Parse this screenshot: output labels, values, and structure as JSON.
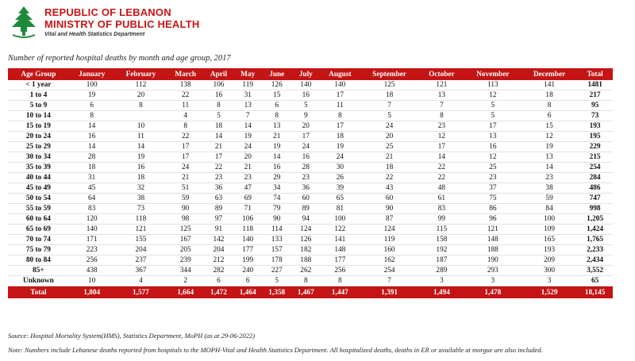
{
  "header": {
    "org_line1": "REPUBLIC OF LEBANON",
    "org_line2": "MINISTRY OF PUBLIC HEALTH",
    "org_line3": "Vital and Health Statistics Department"
  },
  "title": "Number of reported hospital deaths by month and age group, 2017",
  "table": {
    "columns": [
      "Age Group",
      "January",
      "February",
      "March",
      "April",
      "May",
      "June",
      "July",
      "August",
      "September",
      "October",
      "November",
      "December",
      "Total"
    ],
    "rows": [
      [
        "< 1 year",
        "100",
        "112",
        "138",
        "106",
        "119",
        "126",
        "140",
        "140",
        "125",
        "121",
        "113",
        "141",
        "1481"
      ],
      [
        "1 to 4",
        "19",
        "20",
        "22",
        "16",
        "31",
        "15",
        "16",
        "17",
        "18",
        "13",
        "12",
        "18",
        "217"
      ],
      [
        "5 to 9",
        "6",
        "8",
        "11",
        "8",
        "13",
        "6",
        "5",
        "11",
        "7",
        "7",
        "5",
        "8",
        "95"
      ],
      [
        "10 to 14",
        "8",
        "",
        "4",
        "5",
        "7",
        "8",
        "9",
        "8",
        "5",
        "8",
        "5",
        "6",
        "73"
      ],
      [
        "15 to 19",
        "14",
        "10",
        "8",
        "18",
        "14",
        "13",
        "20",
        "17",
        "24",
        "23",
        "17",
        "15",
        "193"
      ],
      [
        "20 to 24",
        "16",
        "11",
        "22",
        "14",
        "19",
        "21",
        "17",
        "18",
        "20",
        "12",
        "13",
        "12",
        "195"
      ],
      [
        "25 to 29",
        "14",
        "14",
        "17",
        "21",
        "24",
        "19",
        "24",
        "19",
        "25",
        "17",
        "16",
        "19",
        "229"
      ],
      [
        "30 to 34",
        "28",
        "19",
        "17",
        "17",
        "20",
        "14",
        "16",
        "24",
        "21",
        "14",
        "12",
        "13",
        "215"
      ],
      [
        "35 to 39",
        "18",
        "16",
        "24",
        "22",
        "21",
        "16",
        "28",
        "30",
        "18",
        "22",
        "25",
        "14",
        "254"
      ],
      [
        "40 to 44",
        "31",
        "18",
        "21",
        "23",
        "23",
        "29",
        "23",
        "26",
        "22",
        "22",
        "23",
        "23",
        "284"
      ],
      [
        "45 to 49",
        "45",
        "32",
        "51",
        "36",
        "47",
        "34",
        "36",
        "39",
        "43",
        "48",
        "37",
        "38",
        "486"
      ],
      [
        "50 to 54",
        "64",
        "38",
        "59",
        "63",
        "69",
        "74",
        "60",
        "65",
        "60",
        "61",
        "75",
        "59",
        "747"
      ],
      [
        "55 to 59",
        "83",
        "73",
        "90",
        "89",
        "71",
        "79",
        "89",
        "81",
        "90",
        "83",
        "86",
        "84",
        "998"
      ],
      [
        "60 to 64",
        "120",
        "118",
        "98",
        "97",
        "106",
        "90",
        "94",
        "100",
        "87",
        "99",
        "96",
        "100",
        "1,205"
      ],
      [
        "65 to 69",
        "140",
        "121",
        "125",
        "91",
        "118",
        "114",
        "124",
        "122",
        "124",
        "115",
        "121",
        "109",
        "1,424"
      ],
      [
        "70 to 74",
        "171",
        "155",
        "167",
        "142",
        "140",
        "133",
        "126",
        "141",
        "119",
        "158",
        "148",
        "165",
        "1,765"
      ],
      [
        "75 to 79",
        "223",
        "204",
        "205",
        "204",
        "177",
        "157",
        "182",
        "148",
        "160",
        "192",
        "188",
        "193",
        "2,233"
      ],
      [
        "80 to 84",
        "256",
        "237",
        "239",
        "212",
        "199",
        "178",
        "188",
        "177",
        "162",
        "187",
        "190",
        "209",
        "2,434"
      ],
      [
        "85+",
        "438",
        "367",
        "344",
        "282",
        "240",
        "227",
        "262",
        "256",
        "254",
        "289",
        "293",
        "300",
        "3,552"
      ],
      [
        "Unknown",
        "10",
        "4",
        "2",
        "6",
        "6",
        "5",
        "8",
        "8",
        "7",
        "3",
        "3",
        "3",
        "65"
      ]
    ],
    "total_row": [
      "Total",
      "1,804",
      "1,577",
      "1,664",
      "1,472",
      "1,464",
      "1,358",
      "1,467",
      "1,447",
      "1,391",
      "1,494",
      "1,478",
      "1,529",
      "18,145"
    ]
  },
  "source": "Source: Hospital Mortality System(HMS), Statistics Department, MoPH (as at 29-06-2022)",
  "note": "Note: Numbers include Lebanese deaths reported from hospitals to the MOPH-Vital and Health Statistics Department. All hospitalized deaths, deaths in ER or available at morgue are also included.",
  "colors": {
    "accent": "#c41414",
    "logo_green": "#1e8a3a"
  }
}
